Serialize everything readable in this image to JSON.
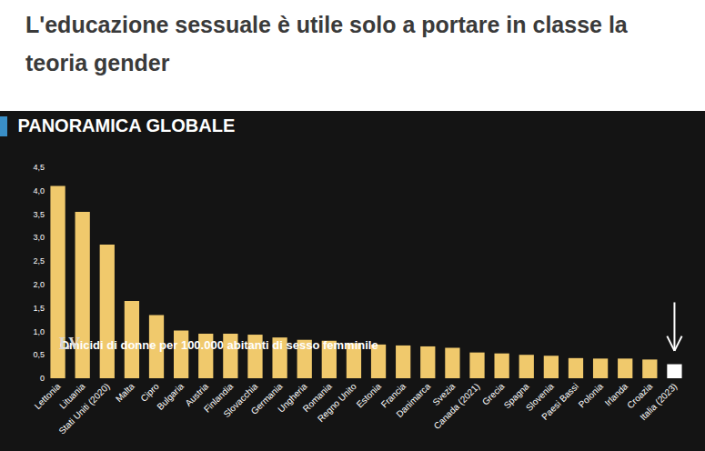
{
  "headline": "L'educazione sessuale è utile solo a portare in classe la teoria gender",
  "logo": "LV",
  "chart_data": {
    "type": "bar",
    "title": "PANORAMICA GLOBALE",
    "subtitle": "Omicidi di donne per 100.000 abitanti di sesso femminile",
    "categories": [
      "Lettonia",
      "Lituania",
      "Stati Uniti (2020)",
      "Malta",
      "Cipro",
      "Bulgaria",
      "Austria",
      "Finlandia",
      "Slovacchia",
      "Germania",
      "Ungheria",
      "Romania",
      "Regno Unito",
      "Estonia",
      "Francia",
      "Danimarca",
      "Svezia",
      "Canada (2021)",
      "Grecia",
      "Spagna",
      "Slovenia",
      "Paesi Bassi",
      "Polonia",
      "Irlanda",
      "Croazia",
      "Italia (2023)"
    ],
    "values": [
      4.1,
      3.55,
      2.85,
      1.65,
      1.35,
      1.02,
      0.95,
      0.95,
      0.93,
      0.87,
      0.82,
      0.8,
      0.75,
      0.72,
      0.7,
      0.68,
      0.65,
      0.55,
      0.53,
      0.5,
      0.48,
      0.43,
      0.42,
      0.42,
      0.4,
      0.3
    ],
    "colors": [
      "#f0c96c",
      "#f0c96c",
      "#f0c96c",
      "#f0c96c",
      "#f0c96c",
      "#f0c96c",
      "#f0c96c",
      "#f0c96c",
      "#f0c96c",
      "#f0c96c",
      "#f0c96c",
      "#f0c96c",
      "#f0c96c",
      "#f0c96c",
      "#f0c96c",
      "#f0c96c",
      "#f0c96c",
      "#f0c96c",
      "#f0c96c",
      "#f0c96c",
      "#f0c96c",
      "#f0c96c",
      "#f0c96c",
      "#f0c96c",
      "#f0c96c",
      "#ffffff"
    ],
    "ylim": [
      0,
      4.5
    ],
    "yticks": [
      0,
      {
        "value": 0.5,
        "label": "0,5"
      },
      {
        "value": 1.0,
        "label": "1,0"
      },
      {
        "value": 1.5,
        "label": "1,5"
      },
      {
        "value": 2.0,
        "label": "2,0"
      },
      {
        "value": 2.5,
        "label": "2,5"
      },
      {
        "value": 3.0,
        "label": "3,0"
      },
      {
        "value": 3.5,
        "label": "3,5"
      },
      {
        "value": 4.0,
        "label": "4,0"
      },
      {
        "value": 4.5,
        "label": "4,5"
      }
    ],
    "grid": false
  }
}
